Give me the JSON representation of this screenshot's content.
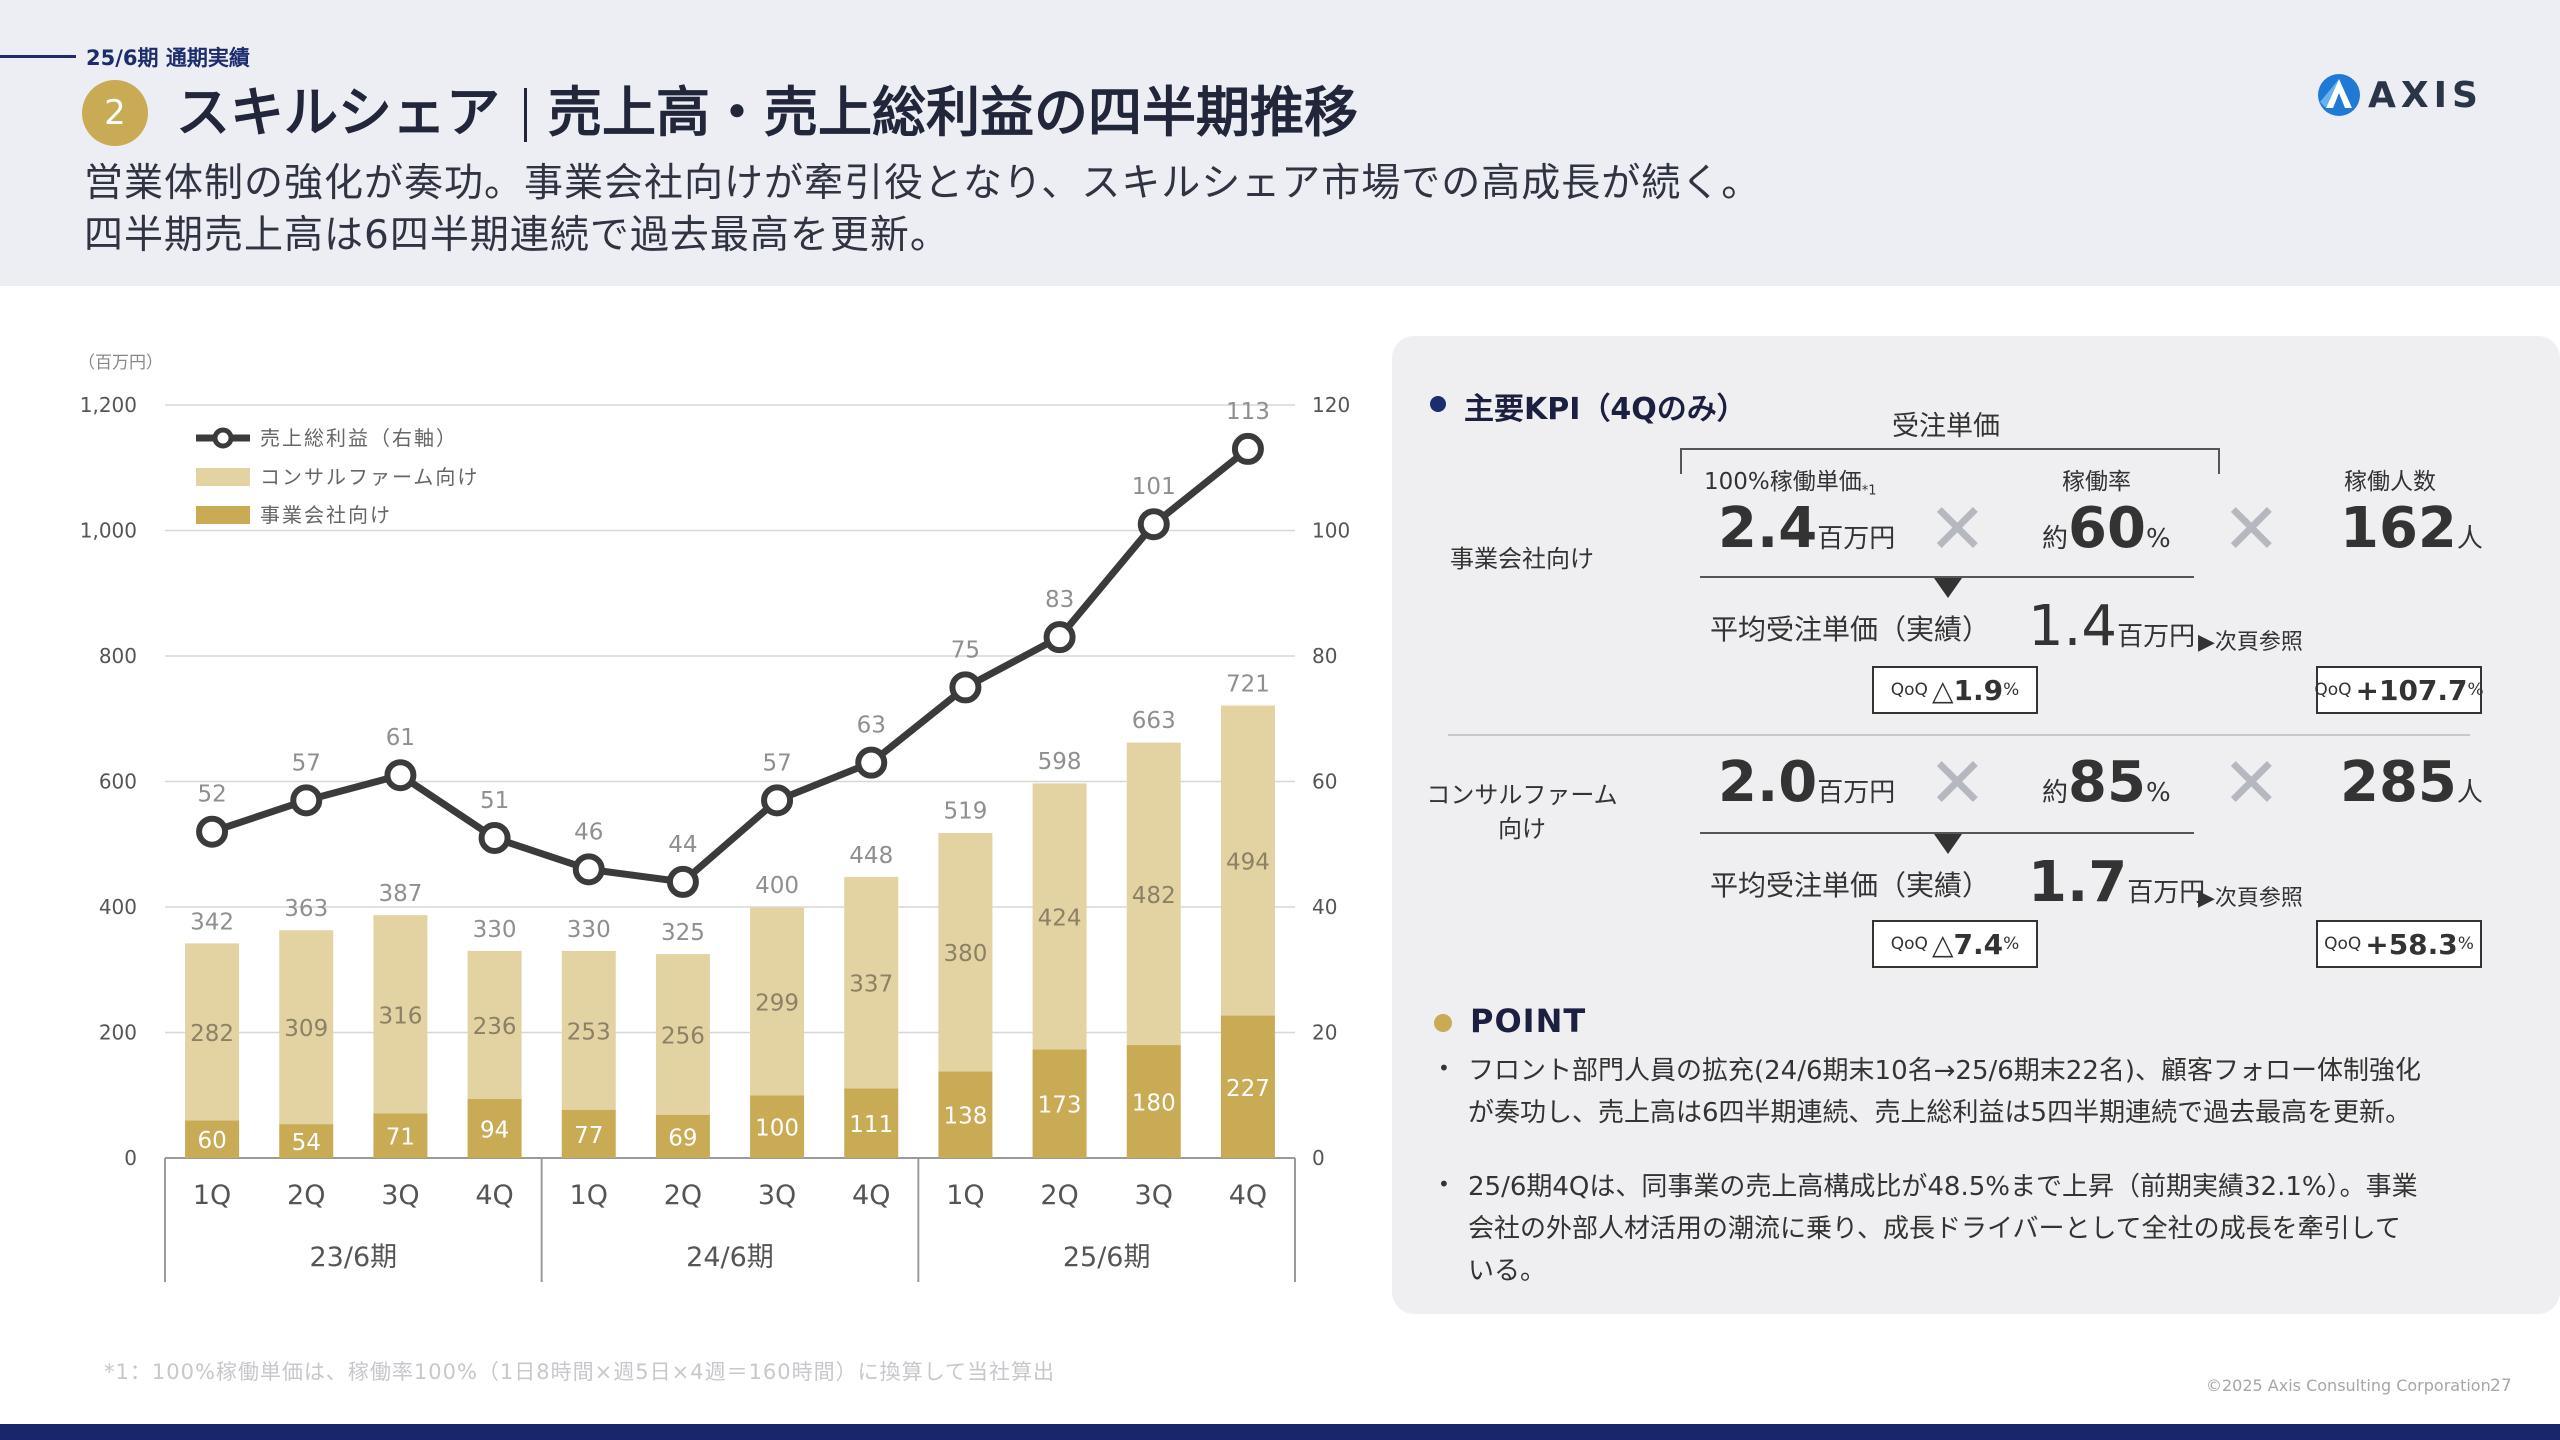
{
  "header": {
    "section_tag": "25/6期 通期実績",
    "badge": "2",
    "title_main": "スキルシェア",
    "title_sub": "売上高・売上総利益の四半期推移",
    "lead_line1": "営業体制の強化が奏功。事業会社向けが牽引役となり、スキルシェア市場での高成長が続く。",
    "lead_line2": "四半期売上高は6四半期連続で過去最高を更新。",
    "logo": "AXIS"
  },
  "chart_data": {
    "type": "bar",
    "stacked": true,
    "unit_label": "（百万円）",
    "categories": [
      "1Q",
      "2Q",
      "3Q",
      "4Q",
      "1Q",
      "2Q",
      "3Q",
      "4Q",
      "1Q",
      "2Q",
      "3Q",
      "4Q"
    ],
    "groups": [
      {
        "label": "23/6期",
        "span": 4
      },
      {
        "label": "24/6期",
        "span": 4
      },
      {
        "label": "25/6期",
        "span": 4
      }
    ],
    "series": [
      {
        "name": "事業会社向け",
        "axis": "left",
        "kind": "bar",
        "color": "#c9aa55",
        "values": [
          60,
          54,
          71,
          94,
          77,
          69,
          100,
          111,
          138,
          173,
          180,
          227
        ]
      },
      {
        "name": "コンサルファーム向け",
        "axis": "left",
        "kind": "bar",
        "color": "#e3d3a2",
        "values": [
          282,
          309,
          316,
          236,
          253,
          256,
          299,
          337,
          380,
          424,
          482,
          494
        ]
      },
      {
        "name": "売上総利益（右軸）",
        "axis": "right",
        "kind": "line",
        "color": "#3b3b3b",
        "values": [
          52,
          57,
          61,
          51,
          46,
          44,
          57,
          63,
          75,
          83,
          101,
          113
        ]
      }
    ],
    "totals": [
      342,
      363,
      387,
      330,
      330,
      325,
      400,
      448,
      519,
      598,
      663,
      721
    ],
    "left_axis": {
      "min": 0,
      "max": 1200,
      "ticks": [
        "0",
        "200",
        "400",
        "600",
        "800",
        "1,000",
        "1,200"
      ]
    },
    "right_axis": {
      "min": 0,
      "max": 120,
      "ticks": [
        "0",
        "20",
        "40",
        "60",
        "80",
        "100",
        "120"
      ]
    },
    "legend_position": "top-left",
    "grid": true
  },
  "kpi": {
    "title": "主要KPI（4Qのみ）",
    "order_unit_header": "受注単価",
    "col_unit_price": "100%稼働単価",
    "col_unit_price_note": "*1",
    "col_util": "稼働率",
    "col_headcount": "稼働人数",
    "cross": "✕",
    "man_unit": "百万円",
    "person_unit": "人",
    "approx": "約",
    "pct": "%",
    "avg_label": "平均受注単価（実績）",
    "ref": "▶次頁参照",
    "qoq": "QoQ",
    "rows": [
      {
        "label": "事業会社向け",
        "unit_price": "2.4",
        "util": "60",
        "headcount": "162",
        "avg_price": "1.4",
        "qoq_price": "△1.9",
        "qoq_headcount": "+107.7"
      },
      {
        "label": "コンサルファーム\n向け",
        "unit_price": "2.0",
        "util": "85",
        "headcount": "285",
        "avg_price": "1.7",
        "qoq_price": "△7.4",
        "qoq_headcount": "+58.3"
      }
    ]
  },
  "point": {
    "title": "POINT",
    "bullets": [
      "フロント部門人員の拡充(24/6期末10名→25/6期末22名)、顧客フォロー体制強化\nが奏功し、売上高は6四半期連続、売上総利益は5四半期連続で過去最高を更新。",
      "25/6期4Qは、同事業の売上高構成比が48.5%まで上昇（前期実績32.1%）。事業\n会社の外部人材活用の潮流に乗り、成長ドライバーとして全社の成長を牽引して\nいる。"
    ]
  },
  "footer": {
    "footnote": "*1：100%稼働単価は、稼働率100%（1日8時間×週5日×4週＝160時間）に換算して当社算出",
    "copyright": "©2025 Axis Consulting Corporation",
    "page": "27"
  }
}
